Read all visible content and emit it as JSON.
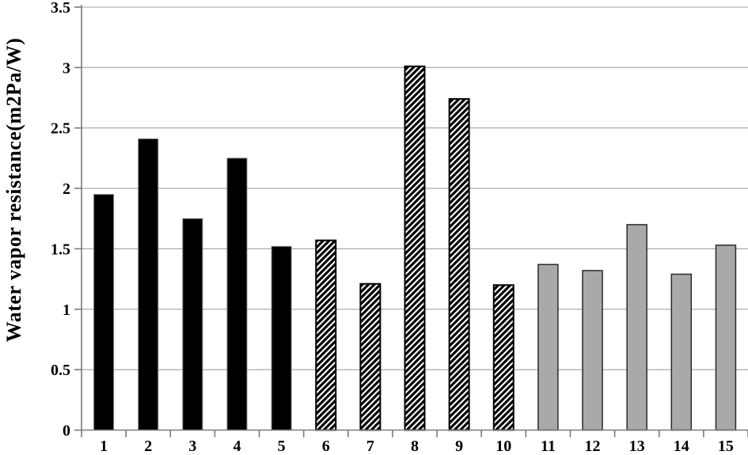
{
  "chart_data": {
    "type": "bar",
    "title": "",
    "xlabel": "",
    "ylabel": "Water vapor resistance(m2Pa/W)",
    "categories": [
      "1",
      "2",
      "3",
      "4",
      "5",
      "6",
      "7",
      "8",
      "9",
      "10",
      "11",
      "12",
      "13",
      "14",
      "15"
    ],
    "values": [
      1.95,
      2.41,
      1.75,
      2.25,
      1.52,
      1.57,
      1.21,
      3.01,
      2.74,
      1.2,
      1.37,
      1.32,
      1.7,
      1.29,
      1.53
    ],
    "bar_styles": [
      "black",
      "black",
      "black",
      "black",
      "black",
      "hatch",
      "hatch",
      "hatch",
      "hatch",
      "hatch",
      "gray",
      "gray",
      "gray",
      "gray",
      "gray"
    ],
    "ylim": [
      0,
      3.5
    ],
    "ytick_step": 0.5,
    "ytick_labels": [
      "0",
      "0.5",
      "1",
      "1.5",
      "2",
      "2.5",
      "3",
      "3.5"
    ],
    "grid": true,
    "legend": "none",
    "colors": {
      "bar_black_fill": "#000000",
      "bar_black_edge": "#7d7d7d",
      "bar_hatch_bg": "#ffffff",
      "bar_hatch_fg": "#000000",
      "bar_gray_fill": "#a9a9a9",
      "bar_gray_edge": "#2b2b2b",
      "gridline": "#a3a3a3",
      "axis": "#7a7a7a",
      "text": "#000000"
    }
  }
}
